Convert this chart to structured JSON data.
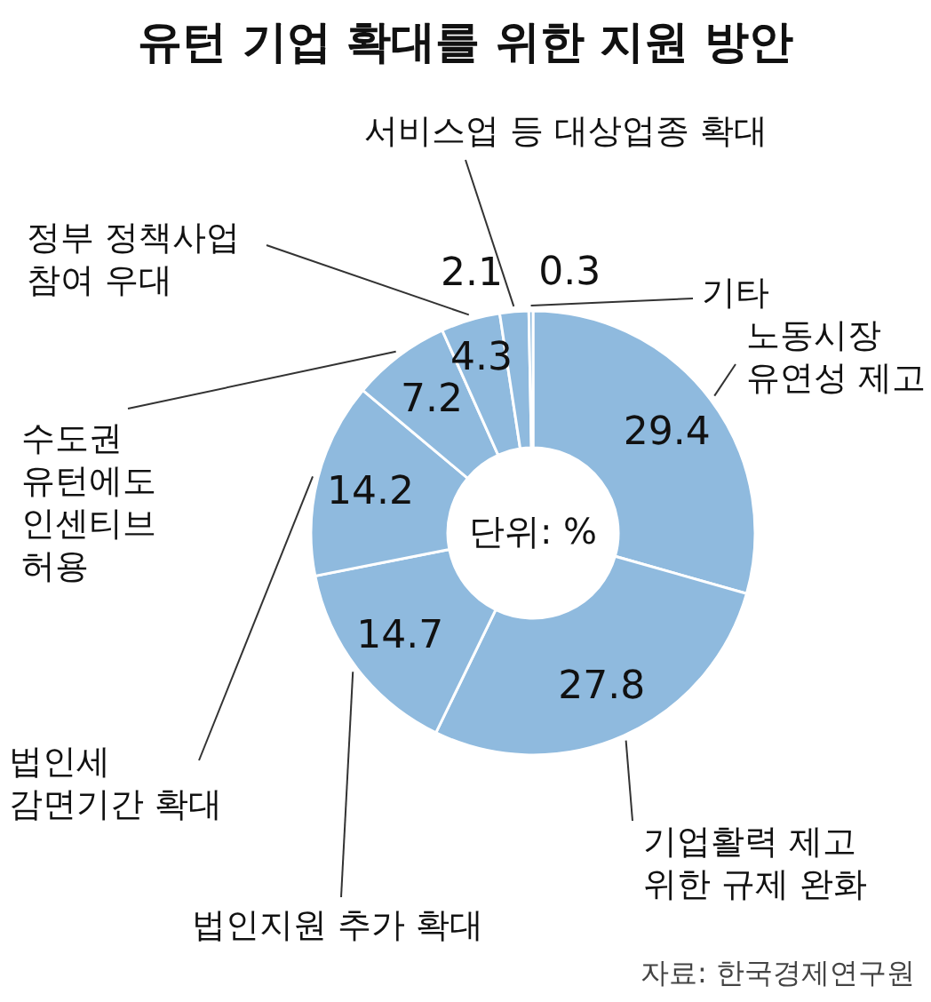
{
  "chart_data": {
    "type": "donut",
    "title": "유턴 기업 확대를 위한 지원 방안",
    "categories": [
      "노동시장\n유연성 제고",
      "기업활력 제고\n위한 규제 완화",
      "법인지원 추가 확대",
      "법인세\n감면기간 확대",
      "수도권\n유턴에도\n인센티브\n허용",
      "정부 정책사업\n참여 우대",
      "서비스업 등 대상업종 확대",
      "기타"
    ],
    "values": [
      29.4,
      27.8,
      14.7,
      14.2,
      7.2,
      4.3,
      2.1,
      0.3
    ],
    "colors": [
      "#8fbade",
      "#8fbade",
      "#8fbade",
      "#8fbade",
      "#8fbade",
      "#8fbade",
      "#8fbade",
      "#8fbade"
    ],
    "data_labels": true,
    "annotations": [
      "단위: %",
      "자료: 한국경제연구원"
    ]
  }
}
